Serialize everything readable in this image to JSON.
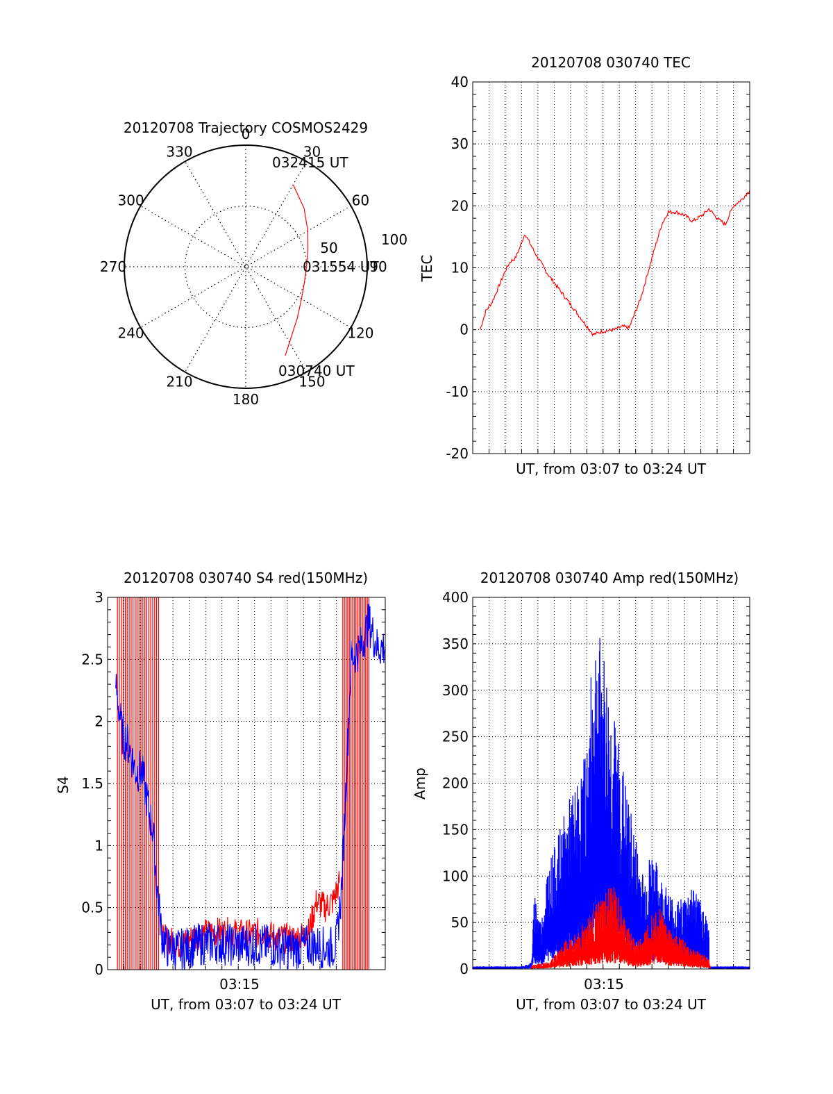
{
  "colors": {
    "red": "#ff0000",
    "blue": "#0000ff",
    "axis": "#000000",
    "grid": "#000000"
  },
  "chart_data": [
    {
      "type": "polar-trajectory",
      "title": "20120708 Trajectory COSMOS2429",
      "angle_labels": [
        "0",
        "30",
        "60",
        "90",
        "120",
        "150",
        "180",
        "210",
        "240",
        "270",
        "300",
        "330"
      ],
      "radial_labels": [
        "50",
        "100"
      ],
      "rlim": [
        0,
        100
      ],
      "grid": true,
      "annotations": [
        "032415 UT",
        "031554 UT",
        "030740 UT"
      ],
      "series": [
        {
          "color": "red",
          "points": [
            [
              30,
              78
            ],
            [
              45,
              68
            ],
            [
              60,
              59
            ],
            [
              75,
              53
            ],
            [
              90,
              50
            ],
            [
              105,
              50
            ],
            [
              120,
              53
            ],
            [
              135,
              60
            ],
            [
              150,
              72
            ],
            [
              156,
              80
            ]
          ]
        }
      ]
    },
    {
      "type": "line",
      "title": "20120708 030740 TEC",
      "xlabel": "UT, from 03:07 to 03:24 UT",
      "ylabel": "TEC",
      "ylim": [
        -20,
        40
      ],
      "yticks": [
        "-20",
        "-10",
        "0",
        "10",
        "20",
        "30",
        "40"
      ],
      "xlim_minutes": [
        0,
        17.0
      ],
      "grid": true,
      "series": [
        {
          "color": "red",
          "points": [
            [
              0.45,
              0.0
            ],
            [
              0.8,
              3.0
            ],
            [
              1.2,
              4.5
            ],
            [
              1.6,
              7.0
            ],
            [
              2.0,
              9.5
            ],
            [
              2.3,
              11.0
            ],
            [
              2.6,
              11.5
            ],
            [
              2.85,
              13.0
            ],
            [
              3.2,
              15.5
            ],
            [
              3.8,
              12.5
            ],
            [
              4.6,
              9.0
            ],
            [
              5.6,
              5.5
            ],
            [
              6.6,
              2.0
            ],
            [
              7.4,
              -0.8
            ],
            [
              7.9,
              -0.3
            ],
            [
              8.7,
              0.0
            ],
            [
              9.2,
              0.5
            ],
            [
              9.6,
              0.3
            ],
            [
              10.3,
              5.0
            ],
            [
              11.1,
              12.5
            ],
            [
              11.6,
              17.0
            ],
            [
              12.0,
              19.0
            ],
            [
              12.5,
              19.0
            ],
            [
              13.0,
              18.5
            ],
            [
              13.5,
              17.5
            ],
            [
              14.1,
              18.5
            ],
            [
              14.5,
              19.5
            ],
            [
              15.0,
              18.0
            ],
            [
              15.5,
              17.0
            ],
            [
              16.0,
              20.0
            ],
            [
              16.5,
              21.0
            ],
            [
              17.0,
              22.5
            ]
          ]
        }
      ]
    },
    {
      "type": "line",
      "title": "20120708 030740 S4 red(150MHz)",
      "xlabel": "UT, from 03:07 to 03:24 UT",
      "ylabel": "S4",
      "xtick_label": "03:15",
      "ylim": [
        0,
        3
      ],
      "yticks": [
        "0",
        "0.5",
        "1",
        "1.5",
        "2",
        "2.5",
        "3"
      ],
      "xlim_minutes": [
        0,
        17.0
      ],
      "grid": true,
      "series": [
        {
          "color": "blue",
          "points": [
            [
              0.5,
              2.3
            ],
            [
              0.9,
              1.9
            ],
            [
              1.3,
              1.8
            ],
            [
              1.7,
              1.6
            ],
            [
              2.1,
              1.6
            ],
            [
              2.5,
              1.3
            ],
            [
              2.8,
              1.1
            ],
            [
              3.0,
              0.7
            ],
            [
              3.3,
              0.3
            ],
            [
              3.6,
              0.18
            ],
            [
              4.5,
              0.16
            ],
            [
              5.5,
              0.2
            ],
            [
              6.5,
              0.22
            ],
            [
              7.5,
              0.2
            ],
            [
              8.5,
              0.2
            ],
            [
              9.5,
              0.2
            ],
            [
              10.5,
              0.18
            ],
            [
              11.5,
              0.17
            ],
            [
              12.5,
              0.2
            ],
            [
              13.5,
              0.17
            ],
            [
              14.0,
              0.2
            ],
            [
              14.3,
              0.6
            ],
            [
              14.6,
              1.5
            ],
            [
              14.9,
              2.5
            ],
            [
              15.5,
              2.6
            ],
            [
              16.0,
              2.8
            ],
            [
              16.5,
              2.6
            ],
            [
              17.0,
              2.6
            ]
          ]
        },
        {
          "color": "red",
          "points": [
            [
              3.3,
              0.25
            ],
            [
              4.5,
              0.2
            ],
            [
              5.5,
              0.28
            ],
            [
              6.5,
              0.3
            ],
            [
              7.5,
              0.3
            ],
            [
              8.5,
              0.28
            ],
            [
              9.5,
              0.3
            ],
            [
              10.5,
              0.25
            ],
            [
              11.5,
              0.25
            ],
            [
              12.3,
              0.3
            ],
            [
              12.8,
              0.55
            ],
            [
              13.3,
              0.5
            ],
            [
              13.8,
              0.55
            ],
            [
              14.2,
              0.7
            ]
          ]
        }
      ]
    },
    {
      "type": "line",
      "title": "20120708 030740 Amp red(150MHz)",
      "xlabel": "UT, from 03:07 to 03:24 UT",
      "ylabel": "Amp",
      "xtick_label": "03:15",
      "ylim": [
        0,
        400
      ],
      "yticks": [
        "0",
        "50",
        "100",
        "150",
        "200",
        "250",
        "300",
        "350",
        "400"
      ],
      "xlim_minutes": [
        0,
        17.0
      ],
      "grid": true,
      "series": [
        {
          "color": "blue",
          "points": [
            [
              0,
              2
            ],
            [
              3.0,
              2
            ],
            [
              3.6,
              5
            ],
            [
              3.8,
              60
            ],
            [
              4.2,
              35
            ],
            [
              4.6,
              80
            ],
            [
              5.0,
              90
            ],
            [
              5.5,
              110
            ],
            [
              6.0,
              130
            ],
            [
              6.5,
              140
            ],
            [
              7.0,
              170
            ],
            [
              7.5,
              260
            ],
            [
              8.0,
              240
            ],
            [
              8.5,
              200
            ],
            [
              9.0,
              170
            ],
            [
              9.5,
              130
            ],
            [
              10.0,
              100
            ],
            [
              10.5,
              70
            ],
            [
              11.0,
              90
            ],
            [
              11.5,
              70
            ],
            [
              12.0,
              60
            ],
            [
              12.5,
              50
            ],
            [
              13.0,
              55
            ],
            [
              13.5,
              65
            ],
            [
              14.0,
              50
            ],
            [
              14.5,
              40
            ],
            [
              14.5,
              2
            ],
            [
              17.0,
              2
            ]
          ]
        },
        {
          "color": "red",
          "points": [
            [
              3.6,
              3
            ],
            [
              4.5,
              5
            ],
            [
              5.0,
              10
            ],
            [
              5.6,
              20
            ],
            [
              6.2,
              25
            ],
            [
              6.8,
              35
            ],
            [
              7.4,
              45
            ],
            [
              8.0,
              55
            ],
            [
              8.6,
              65
            ],
            [
              9.0,
              50
            ],
            [
              9.6,
              30
            ],
            [
              10.1,
              20
            ],
            [
              10.6,
              30
            ],
            [
              11.1,
              50
            ],
            [
              11.6,
              45
            ],
            [
              12.1,
              30
            ],
            [
              12.6,
              25
            ],
            [
              13.1,
              20
            ],
            [
              13.6,
              15
            ],
            [
              14.1,
              12
            ],
            [
              14.5,
              8
            ],
            [
              14.6,
              2
            ]
          ]
        }
      ]
    }
  ]
}
